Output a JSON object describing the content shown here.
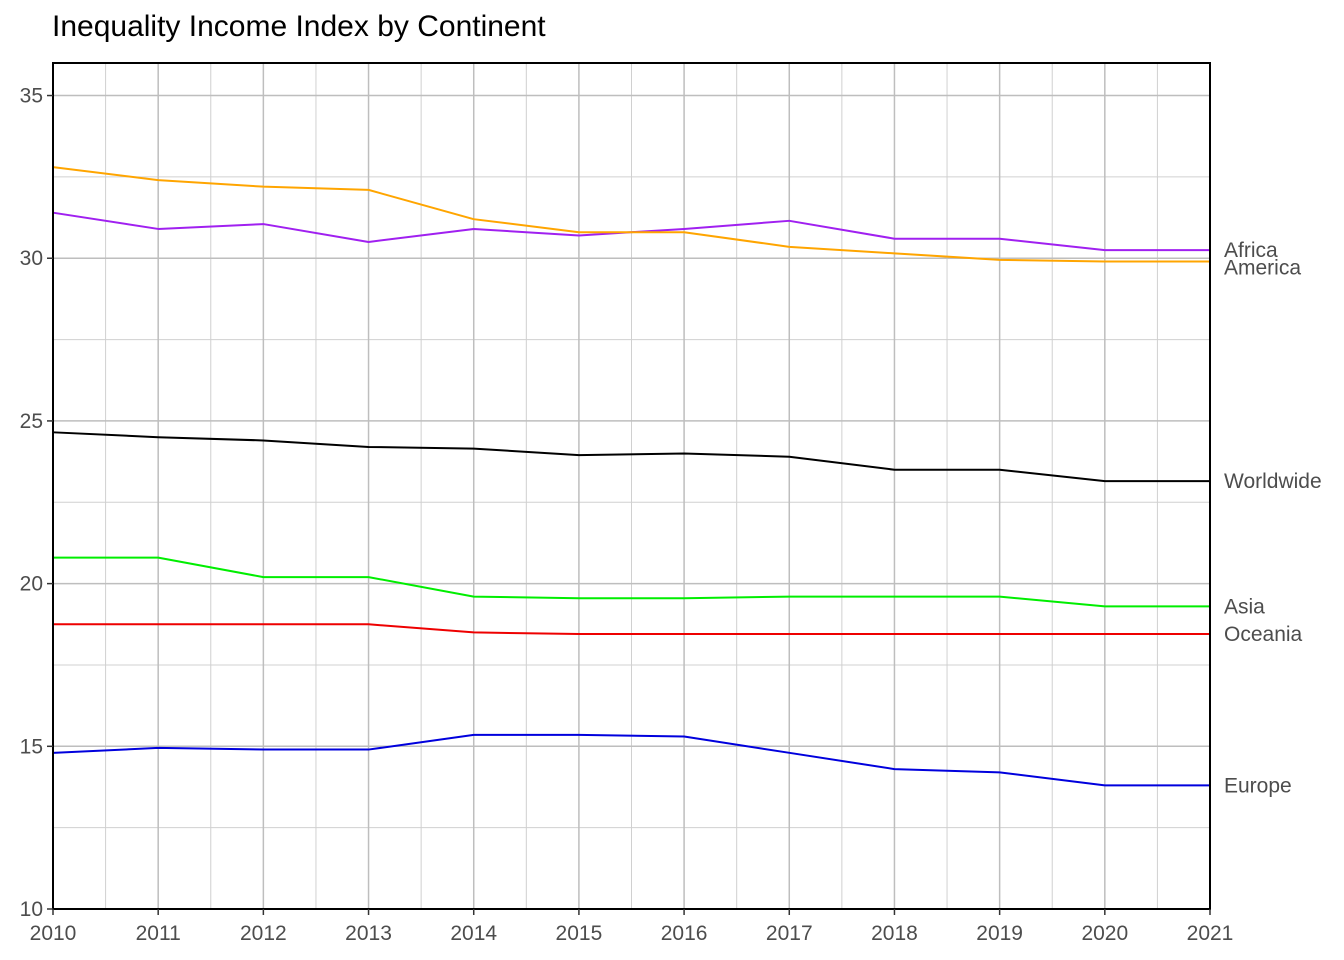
{
  "chart_data": {
    "type": "line",
    "title": "Inequality Income Index by Continent",
    "xlabel": "",
    "ylabel": "",
    "x": [
      2010,
      2011,
      2012,
      2013,
      2014,
      2015,
      2016,
      2017,
      2018,
      2019,
      2020,
      2021
    ],
    "xlim": [
      2010,
      2021
    ],
    "ylim": [
      10,
      36
    ],
    "yticks": [
      10,
      15,
      20,
      25,
      30,
      35
    ],
    "grid": true,
    "legend": "direct labels at right end of lines",
    "series": [
      {
        "name": "Africa",
        "color": "#a020f0",
        "values": [
          31.4,
          30.9,
          31.05,
          30.5,
          30.9,
          30.7,
          30.9,
          31.15,
          30.6,
          30.6,
          30.25,
          30.25
        ]
      },
      {
        "name": "America",
        "color": "#ffa500",
        "values": [
          32.8,
          32.4,
          32.2,
          32.1,
          31.2,
          30.8,
          30.8,
          30.35,
          30.15,
          29.95,
          29.9,
          29.9
        ]
      },
      {
        "name": "Worldwide",
        "color": "#000000",
        "values": [
          24.65,
          24.5,
          24.4,
          24.2,
          24.15,
          23.95,
          24.0,
          23.9,
          23.5,
          23.5,
          23.15,
          23.15
        ]
      },
      {
        "name": "Asia",
        "color": "#00ee00",
        "values": [
          20.8,
          20.8,
          20.2,
          20.2,
          19.6,
          19.55,
          19.55,
          19.6,
          19.6,
          19.6,
          19.3,
          19.3
        ]
      },
      {
        "name": "Oceania",
        "color": "#ee0000",
        "values": [
          18.75,
          18.75,
          18.75,
          18.75,
          18.5,
          18.45,
          18.45,
          18.45,
          18.45,
          18.45,
          18.45,
          18.45
        ]
      },
      {
        "name": "Europe",
        "color": "#0000dd",
        "values": [
          14.8,
          14.95,
          14.9,
          14.9,
          15.35,
          15.35,
          15.3,
          14.8,
          14.3,
          14.2,
          13.8,
          13.8
        ]
      }
    ]
  }
}
